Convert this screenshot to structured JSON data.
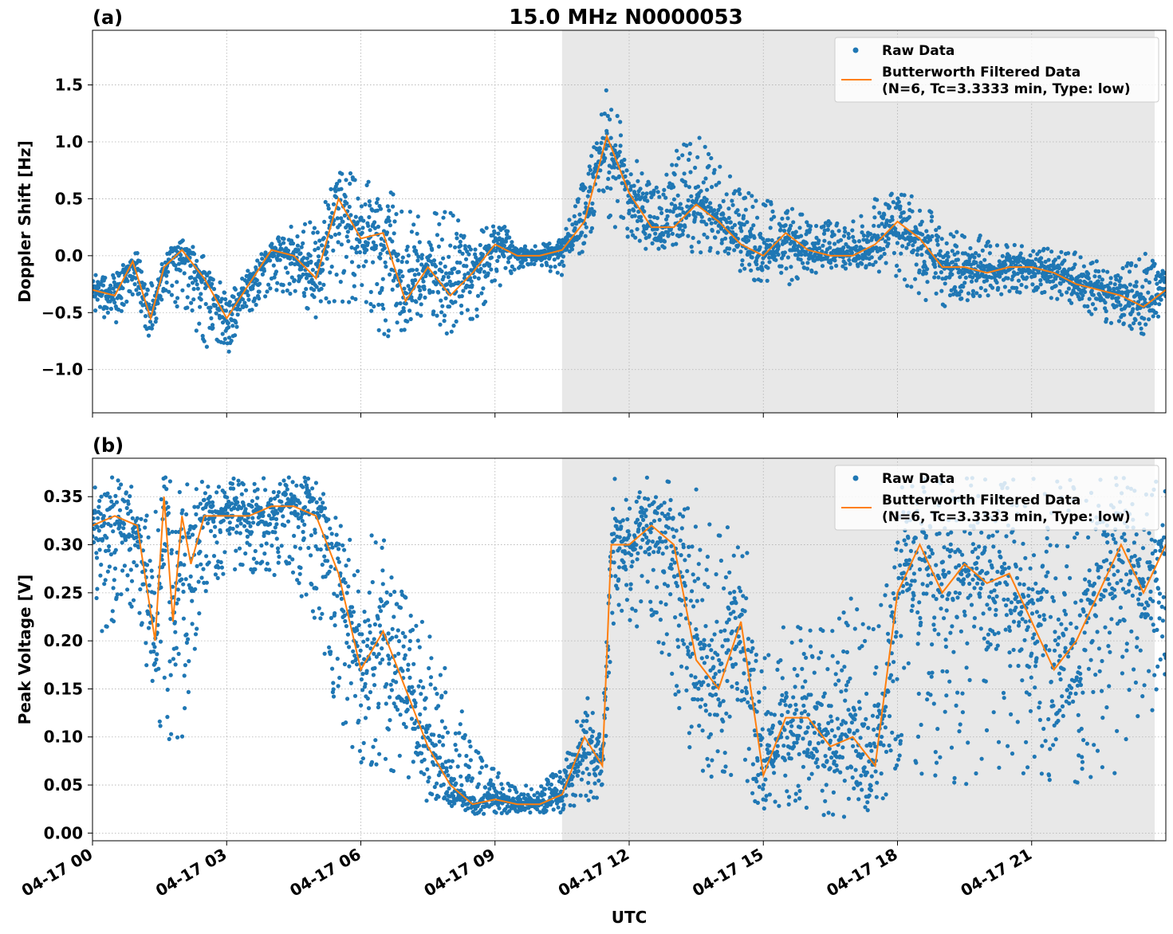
{
  "figure": {
    "title": "15.0 MHz N0000053",
    "xlabel": "UTC",
    "shade_color": "#e8e8e8",
    "raw_color": "#1f77b4",
    "filtered_color": "#ff7f0e",
    "grid": true
  },
  "chart_data": [
    {
      "type": "scatter",
      "panel_label": "(a)",
      "ylabel": "Doppler Shift [Hz]",
      "x_unit": "hours since 04-17 00 UTC",
      "xlim": [
        0,
        24
      ],
      "ylim": [
        -1.38,
        1.98
      ],
      "xticks": [
        {
          "value": 0,
          "label": "04-17 00"
        },
        {
          "value": 3,
          "label": "04-17 03"
        },
        {
          "value": 6,
          "label": "04-17 06"
        },
        {
          "value": 9,
          "label": "04-17 09"
        },
        {
          "value": 12,
          "label": "04-17 12"
        },
        {
          "value": 15,
          "label": "04-17 15"
        },
        {
          "value": 18,
          "label": "04-17 18"
        },
        {
          "value": 21,
          "label": "04-17 21"
        }
      ],
      "yticks": [
        {
          "value": -1.0,
          "label": "−1.0"
        },
        {
          "value": -0.5,
          "label": "−0.5"
        },
        {
          "value": 0.0,
          "label": "0.0"
        },
        {
          "value": 0.5,
          "label": "0.5"
        },
        {
          "value": 1.0,
          "label": "1.0"
        },
        {
          "value": 1.5,
          "label": "1.5"
        }
      ],
      "shaded_span": [
        10.5,
        23.75
      ],
      "legend": {
        "placement": "upper right",
        "raw_label": "Raw Data",
        "filtered_label_line1": "Butterworth Filtered Data",
        "filtered_label_line2": "(N=6, Tc=3.3333 min, Type: low)"
      },
      "series": [
        {
          "name": "Raw Data",
          "style": "points",
          "envelope": {
            "x": [
              0,
              0.5,
              0.9,
              1.3,
              1.6,
              2.0,
              2.5,
              3.0,
              3.5,
              4.0,
              4.5,
              5.0,
              5.5,
              6.0,
              6.5,
              7.0,
              7.5,
              8.0,
              8.5,
              9.0,
              9.5,
              10.0,
              10.5,
              11.0,
              11.5,
              12.0,
              12.5,
              13.0,
              13.5,
              14.0,
              14.5,
              15.0,
              15.5,
              16.0,
              16.5,
              17.0,
              17.5,
              18.0,
              18.5,
              19.0,
              19.5,
              20.0,
              20.5,
              21.0,
              21.5,
              22.0,
              22.5,
              23.0,
              23.5,
              24.0
            ],
            "upper": [
              -0.15,
              -0.1,
              0.1,
              -0.2,
              0.05,
              0.15,
              0.0,
              -0.3,
              -0.05,
              0.1,
              0.3,
              0.3,
              0.8,
              0.7,
              0.6,
              0.5,
              0.3,
              0.6,
              0.1,
              0.4,
              0.08,
              0.1,
              0.15,
              0.7,
              1.5,
              1.0,
              0.6,
              0.9,
              1.1,
              0.8,
              0.6,
              0.5,
              0.45,
              0.35,
              0.3,
              0.3,
              0.5,
              0.6,
              0.5,
              0.3,
              0.25,
              0.15,
              0.1,
              0.1,
              0.1,
              0.05,
              -0.05,
              -0.1,
              0.05,
              -0.15
            ],
            "lower": [
              -0.5,
              -0.6,
              -0.4,
              -0.8,
              -0.35,
              -0.5,
              -0.8,
              -0.9,
              -0.55,
              -0.3,
              -0.35,
              -0.55,
              -0.4,
              -0.5,
              -0.7,
              -0.8,
              -0.5,
              -0.75,
              -0.6,
              -0.3,
              -0.15,
              -0.08,
              -0.2,
              0.05,
              0.3,
              0.1,
              0.0,
              0.0,
              0.0,
              -0.05,
              -0.15,
              -0.35,
              -0.3,
              -0.15,
              -0.15,
              -0.1,
              -0.15,
              -0.2,
              -0.35,
              -0.5,
              -0.4,
              -0.35,
              -0.35,
              -0.3,
              -0.4,
              -0.45,
              -0.55,
              -0.65,
              -0.7,
              -0.55
            ]
          }
        },
        {
          "name": "Butterworth Filtered Data",
          "style": "line",
          "x": [
            0,
            0.5,
            0.9,
            1.3,
            1.6,
            2.0,
            2.5,
            3.0,
            3.5,
            4.0,
            4.5,
            5.0,
            5.5,
            6.0,
            6.5,
            7.0,
            7.5,
            8.0,
            8.5,
            9.0,
            9.5,
            10.0,
            10.5,
            11.0,
            11.5,
            12.0,
            12.5,
            13.0,
            13.5,
            14.0,
            14.5,
            15.0,
            15.5,
            16.0,
            16.5,
            17.0,
            17.5,
            18.0,
            18.5,
            19.0,
            19.5,
            20.0,
            20.5,
            21.0,
            21.5,
            22.0,
            22.5,
            23.0,
            23.5,
            24.0
          ],
          "y": [
            -0.3,
            -0.35,
            -0.05,
            -0.55,
            -0.1,
            0.05,
            -0.2,
            -0.55,
            -0.25,
            0.05,
            0.0,
            -0.2,
            0.5,
            0.15,
            0.2,
            -0.4,
            -0.1,
            -0.35,
            -0.15,
            0.1,
            0.0,
            0.0,
            0.05,
            0.3,
            1.05,
            0.55,
            0.25,
            0.25,
            0.45,
            0.3,
            0.1,
            0.0,
            0.2,
            0.05,
            0.0,
            0.0,
            0.1,
            0.3,
            0.15,
            -0.1,
            -0.1,
            -0.15,
            -0.1,
            -0.1,
            -0.15,
            -0.25,
            -0.3,
            -0.35,
            -0.45,
            -0.3
          ]
        }
      ]
    },
    {
      "type": "scatter",
      "panel_label": "(b)",
      "ylabel": "Peak Voltage [V]",
      "x_unit": "hours since 04-17 00 UTC",
      "xlim": [
        0,
        24
      ],
      "ylim": [
        -0.008,
        0.39
      ],
      "xticks": [
        {
          "value": 0,
          "label": "04-17 00"
        },
        {
          "value": 3,
          "label": "04-17 03"
        },
        {
          "value": 6,
          "label": "04-17 06"
        },
        {
          "value": 9,
          "label": "04-17 09"
        },
        {
          "value": 12,
          "label": "04-17 12"
        },
        {
          "value": 15,
          "label": "04-17 15"
        },
        {
          "value": 18,
          "label": "04-17 18"
        },
        {
          "value": 21,
          "label": "04-17 21"
        }
      ],
      "yticks": [
        {
          "value": 0.0,
          "label": "0.00"
        },
        {
          "value": 0.05,
          "label": "0.05"
        },
        {
          "value": 0.1,
          "label": "0.10"
        },
        {
          "value": 0.15,
          "label": "0.15"
        },
        {
          "value": 0.2,
          "label": "0.20"
        },
        {
          "value": 0.25,
          "label": "0.25"
        },
        {
          "value": 0.3,
          "label": "0.30"
        },
        {
          "value": 0.35,
          "label": "0.35"
        }
      ],
      "shaded_span": [
        10.5,
        23.75
      ],
      "legend": {
        "placement": "upper right",
        "raw_label": "Raw Data",
        "filtered_label_line1": "Butterworth Filtered Data",
        "filtered_label_line2": "(N=6, Tc=3.3333 min, Type: low)"
      },
      "series": [
        {
          "name": "Raw Data",
          "style": "points",
          "envelope": {
            "x": [
              0,
              0.5,
              1.0,
              1.5,
              1.6,
              2.0,
              2.5,
              3.0,
              3.5,
              4.0,
              4.5,
              5.0,
              5.5,
              6.0,
              6.5,
              7.0,
              7.5,
              8.0,
              8.5,
              9.0,
              9.5,
              10.0,
              10.5,
              11.0,
              11.4,
              11.6,
              12.0,
              12.5,
              13.0,
              13.5,
              14.0,
              14.5,
              15.0,
              15.5,
              16.0,
              16.5,
              17.0,
              17.5,
              18.0,
              18.5,
              19.0,
              19.5,
              20.0,
              20.5,
              21.0,
              21.5,
              22.0,
              22.5,
              23.0,
              23.5,
              24.0
            ],
            "upper": [
              0.37,
              0.37,
              0.365,
              0.36,
              0.37,
              0.37,
              0.365,
              0.37,
              0.37,
              0.37,
              0.37,
              0.37,
              0.33,
              0.3,
              0.33,
              0.26,
              0.22,
              0.17,
              0.09,
              0.07,
              0.05,
              0.05,
              0.07,
              0.15,
              0.12,
              0.37,
              0.37,
              0.37,
              0.37,
              0.36,
              0.32,
              0.34,
              0.18,
              0.22,
              0.22,
              0.22,
              0.25,
              0.23,
              0.36,
              0.37,
              0.37,
              0.37,
              0.37,
              0.37,
              0.37,
              0.37,
              0.37,
              0.37,
              0.37,
              0.37,
              0.37
            ],
            "lower": [
              0.2,
              0.22,
              0.24,
              0.08,
              0.1,
              0.08,
              0.25,
              0.27,
              0.27,
              0.27,
              0.25,
              0.22,
              0.12,
              0.07,
              0.06,
              0.04,
              0.03,
              0.025,
              0.02,
              0.02,
              0.02,
              0.02,
              0.02,
              0.03,
              0.03,
              0.2,
              0.22,
              0.2,
              0.15,
              0.06,
              0.04,
              0.05,
              0.02,
              0.02,
              0.02,
              0.015,
              0.015,
              0.02,
              0.06,
              0.05,
              0.05,
              0.05,
              0.06,
              0.07,
              0.05,
              0.05,
              0.05,
              0.06,
              0.06,
              0.12,
              0.14
            ]
          }
        },
        {
          "name": "Butterworth Filtered Data",
          "style": "line",
          "x": [
            0,
            0.5,
            1.0,
            1.4,
            1.6,
            1.8,
            2.0,
            2.2,
            2.5,
            3.0,
            3.5,
            4.0,
            4.5,
            5.0,
            5.5,
            6.0,
            6.5,
            7.0,
            7.5,
            8.0,
            8.5,
            9.0,
            9.5,
            10.0,
            10.5,
            11.0,
            11.4,
            11.6,
            12.0,
            12.5,
            13.0,
            13.5,
            14.0,
            14.5,
            15.0,
            15.5,
            16.0,
            16.5,
            17.0,
            17.5,
            18.0,
            18.5,
            19.0,
            19.5,
            20.0,
            20.5,
            21.0,
            21.5,
            22.0,
            22.5,
            23.0,
            23.5,
            24.0
          ],
          "y": [
            0.32,
            0.33,
            0.32,
            0.2,
            0.35,
            0.22,
            0.33,
            0.28,
            0.33,
            0.33,
            0.33,
            0.34,
            0.34,
            0.33,
            0.27,
            0.17,
            0.21,
            0.15,
            0.09,
            0.05,
            0.03,
            0.035,
            0.03,
            0.03,
            0.04,
            0.1,
            0.07,
            0.3,
            0.3,
            0.32,
            0.3,
            0.18,
            0.15,
            0.22,
            0.06,
            0.12,
            0.12,
            0.09,
            0.1,
            0.07,
            0.25,
            0.3,
            0.25,
            0.28,
            0.26,
            0.27,
            0.22,
            0.17,
            0.2,
            0.25,
            0.3,
            0.25,
            0.3
          ]
        }
      ]
    }
  ]
}
